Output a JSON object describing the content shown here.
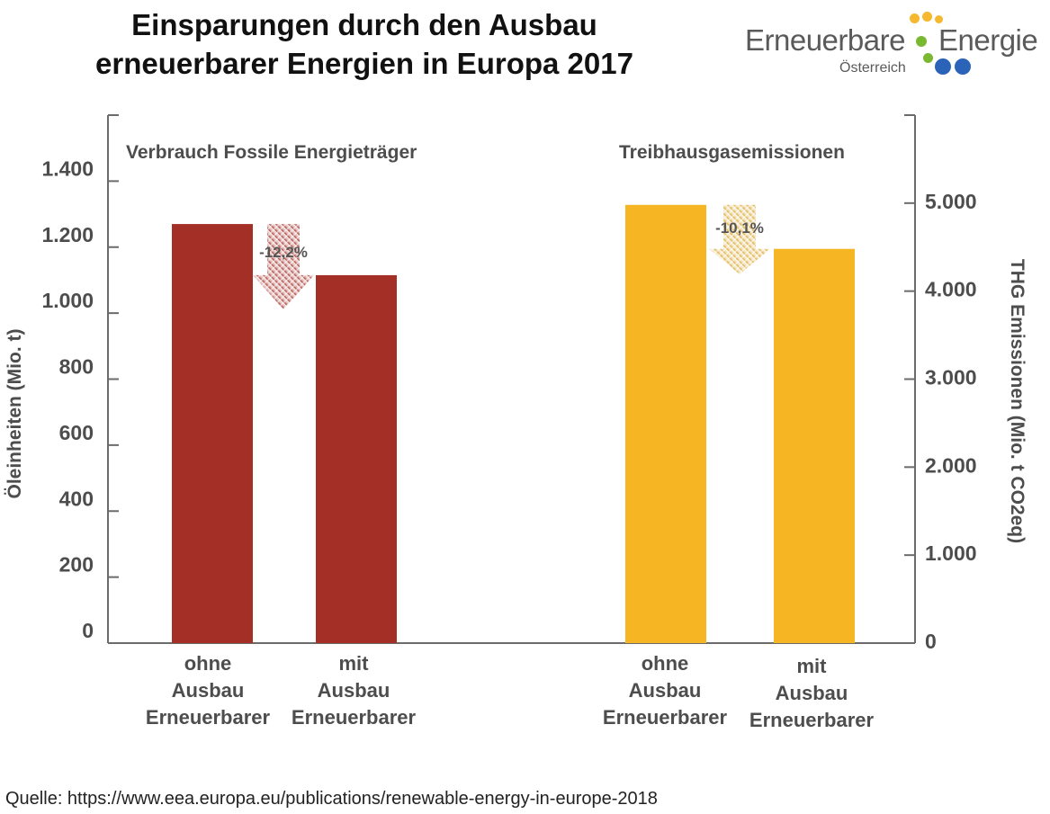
{
  "title": {
    "line1": "Einsparungen durch den Ausbau",
    "line2": "erneuerbarer Energien in Europa 2017"
  },
  "logo": {
    "name_part1": "Erneuerbare",
    "name_part2": "Energie",
    "subtitle": "Österreich",
    "dot_colors": [
      "#f5b82e",
      "#7ab832",
      "#2a63b8"
    ]
  },
  "source": "Quelle: https://www.eea.europa.eu/publications/renewable-energy-in-europe-2018",
  "chart_data": {
    "type": "bar",
    "left_axis": {
      "label": "Öleinheiten (Mio. t)",
      "range": [
        0,
        1600
      ],
      "ticks": [
        0,
        200,
        400,
        600,
        800,
        1000,
        1200,
        1400
      ],
      "tick_labels": [
        "0",
        "200",
        "400",
        "600",
        "800",
        "1.000",
        "1.200",
        "1.400"
      ]
    },
    "right_axis": {
      "label": "THG Emissionen (Mio. t CO2eq)",
      "range": [
        0,
        6000
      ],
      "ticks": [
        0,
        1000,
        2000,
        3000,
        4000,
        5000
      ],
      "tick_labels": [
        "0",
        "1.000",
        "2.000",
        "3.000",
        "4.000",
        "5.000"
      ]
    },
    "groups": [
      {
        "title": "Verbrauch Fossile Energieträger",
        "axis": "left",
        "color": "#a42f27",
        "categories": [
          "ohne Ausbau Erneuerbarer",
          "mit Ausbau Erneuerbarer"
        ],
        "category_lines": [
          [
            "ohne",
            "Ausbau",
            "Erneuerbarer"
          ],
          [
            "mit",
            "Ausbau",
            "Erneuerbarer"
          ]
        ],
        "values": [
          1270,
          1115
        ],
        "change_label": "-12,2%",
        "arrow_color": "#a42f27"
      },
      {
        "title": "Treibhausgasemissionen",
        "axis": "right",
        "color": "#f6b624",
        "categories": [
          "ohne Ausbau Erneuerbarer",
          "mit Ausbau Erneuerbarer"
        ],
        "category_lines": [
          [
            "ohne",
            "Ausbau",
            "Erneuerbarer"
          ],
          [
            "mit",
            "Ausbau",
            "Erneuerbarer"
          ]
        ],
        "values": [
          4980,
          4480
        ],
        "change_label": "-10,1%",
        "arrow_color": "#d9a52b"
      }
    ],
    "axis_color": "#6b6b6b",
    "text_color": "#4d4d4d"
  }
}
